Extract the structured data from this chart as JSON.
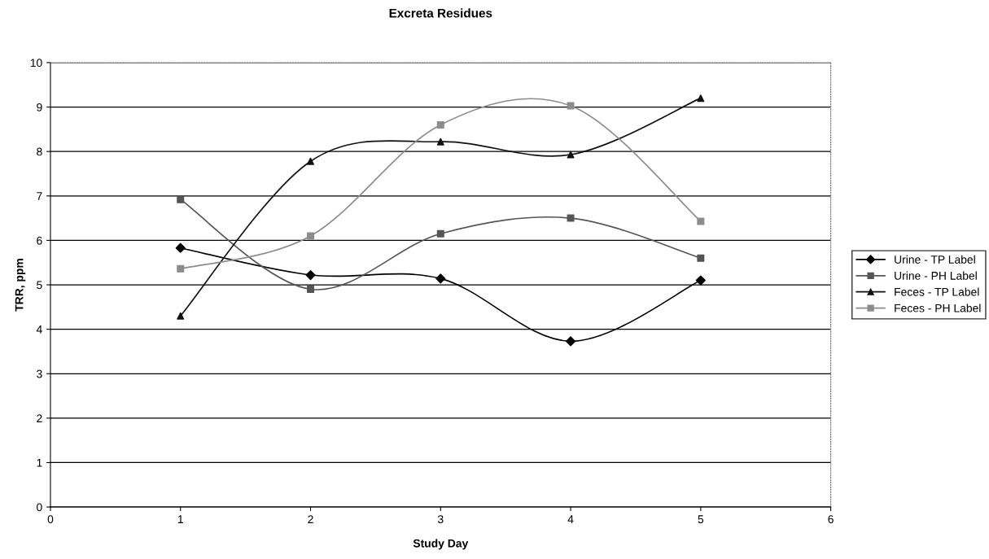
{
  "chart_data": {
    "type": "line",
    "title": "Excreta Residues",
    "xlabel": "Study Day",
    "ylabel": "TRR, ppm",
    "x": [
      1,
      2,
      3,
      4,
      5
    ],
    "series": [
      {
        "name": "Urine - TP Label",
        "color": "#000000",
        "marker": "diamond",
        "values": [
          5.83,
          5.22,
          5.14,
          3.73,
          5.1
        ]
      },
      {
        "name": "Urine - PH Label",
        "color": "#555555",
        "marker": "square",
        "values": [
          6.92,
          4.9,
          6.15,
          6.5,
          5.6
        ]
      },
      {
        "name": "Feces - TP Label",
        "color": "#111111",
        "marker": "triangle",
        "values": [
          4.3,
          7.78,
          8.22,
          7.93,
          9.2
        ]
      },
      {
        "name": "Feces - PH Label",
        "color": "#8c8c8c",
        "marker": "square",
        "values": [
          5.36,
          6.1,
          8.6,
          9.03,
          6.43
        ]
      }
    ],
    "xlim": [
      0,
      6
    ],
    "xticks": [
      0,
      1,
      2,
      3,
      4,
      5,
      6
    ],
    "ylim": [
      0,
      10
    ],
    "yticks": [
      0,
      1,
      2,
      3,
      4,
      5,
      6,
      7,
      8,
      9,
      10
    ],
    "grid": "y",
    "legend": "right"
  }
}
